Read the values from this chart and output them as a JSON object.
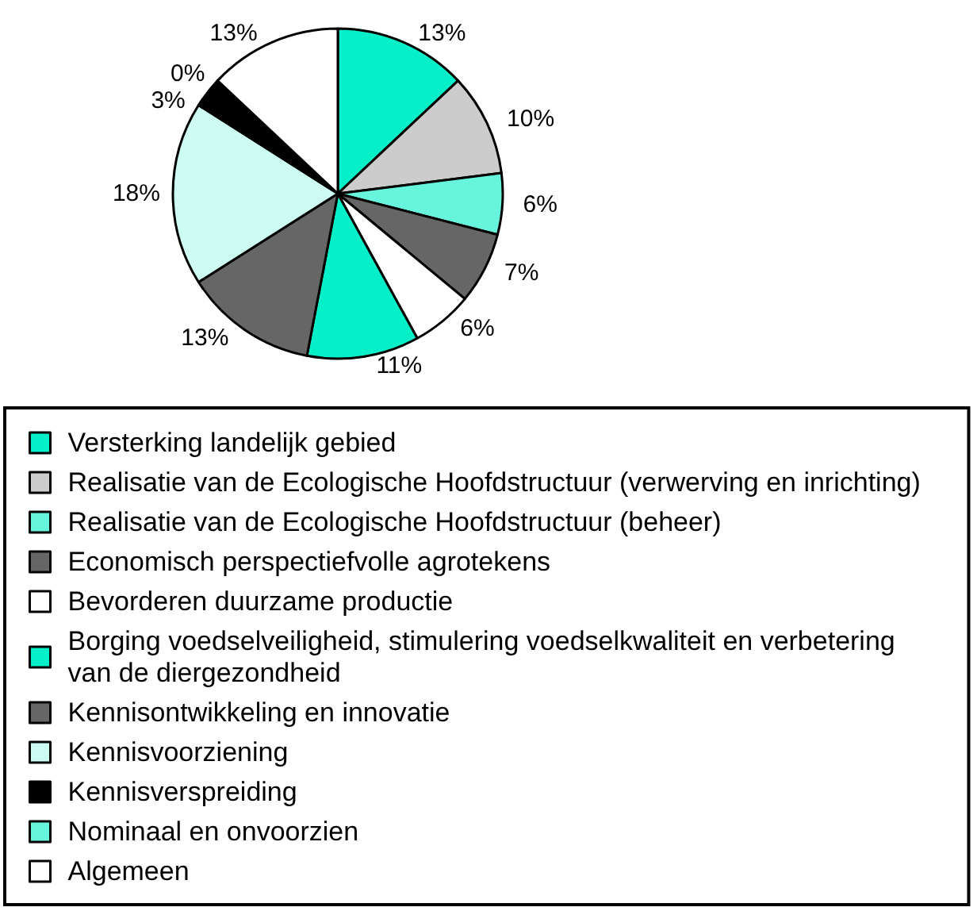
{
  "chart_data": {
    "type": "pie",
    "categories": [
      "Versterking landelijk gebied",
      "Realisatie van de Ecologische Hoofdstructuur (verwerving en inrichting)",
      "Realisatie van de Ecologische Hoofdstructuur (beheer)",
      "Economisch perspectiefvolle agrotekens",
      "Bevorderen duurzame productie",
      "Borging voedselveiligheid, stimulering voedselkwaliteit en verbetering van de diergezondheid",
      "Kennisontwikkeling en innovatie",
      "Kennisvoorziening",
      "Kennisverspreiding",
      "Nominaal en onvoorzien",
      "Algemeen"
    ],
    "values": [
      13,
      10,
      6,
      7,
      6,
      11,
      13,
      18,
      3,
      0,
      13
    ],
    "value_labels": [
      "13%",
      "10%",
      "6%",
      "7%",
      "6%",
      "11%",
      "13%",
      "18%",
      "3%",
      "0%",
      "13%"
    ],
    "colors": [
      "#05f0c8",
      "#cccccc",
      "#66f5dc",
      "#666666",
      "#ffffff",
      "#05f0c8",
      "#666666",
      "#ccfcf2",
      "#000000",
      "#66f5dc",
      "#ffffff"
    ],
    "legend": "bottom"
  }
}
